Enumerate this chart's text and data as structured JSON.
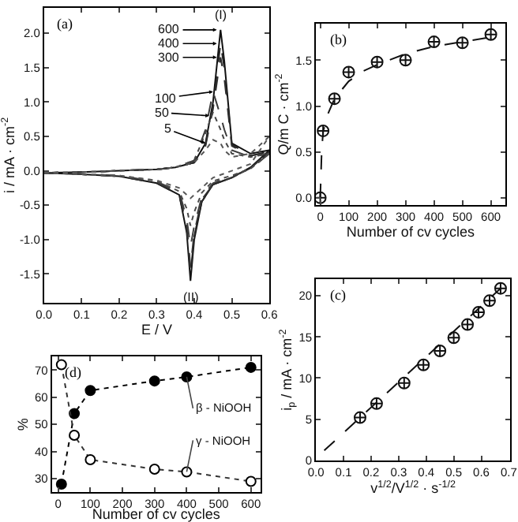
{
  "chart_data": [
    {
      "type": "line",
      "xlabel": "E / V",
      "ylabel": "i / mA · cm$^{-2}$",
      "xlim": [
        0,
        0.6
      ],
      "ylim": [
        -1.92,
        2.37
      ],
      "xticks": [
        {
          "value": 0,
          "label": "0.0"
        },
        0.1,
        0.2,
        0.3,
        0.4,
        0.5,
        0.6
      ],
      "yticks": [
        {
          "value": -1.5,
          "label": "-1.5"
        },
        {
          "value": -1,
          "label": "-1.0"
        },
        {
          "value": -0.5,
          "label": "-0.5"
        },
        {
          "value": 0,
          "label": "0.0"
        },
        0.5,
        {
          "value": 1,
          "label": "1.0"
        },
        1.5,
        {
          "value": 2,
          "label": "2.0"
        }
      ],
      "series": [
        {
          "color": "#111111",
          "line_style": "solid",
          "x": [
            0,
            0.1,
            0.2,
            0.3,
            0.35,
            0.4,
            0.43,
            0.45,
            0.47,
            0.48,
            0.5,
            0.55,
            0.6
          ],
          "values": [
            -0.03,
            -0.02,
            0,
            0.02,
            0.05,
            0.12,
            0.4,
            1.0,
            2.05,
            1.6,
            0.4,
            0.25,
            0.3
          ]
        },
        {
          "color": "#151515",
          "line_style": "solid",
          "x": [
            0,
            0.1,
            0.2,
            0.3,
            0.36,
            0.38,
            0.39,
            0.4,
            0.42,
            0.45,
            0.5,
            0.55,
            0.6
          ],
          "values": [
            -0.03,
            -0.05,
            -0.08,
            -0.18,
            -0.35,
            -0.9,
            -1.6,
            -1.0,
            -0.45,
            -0.2,
            -0.1,
            0.05,
            0.3
          ]
        },
        {
          "color": "#222222",
          "line_style": "dashed",
          "x": [
            0,
            0.1,
            0.2,
            0.3,
            0.35,
            0.4,
            0.43,
            0.45,
            0.47,
            0.48,
            0.5,
            0.55,
            0.6
          ],
          "values": [
            -0.03,
            -0.02,
            0,
            0.02,
            0.05,
            0.12,
            0.38,
            0.95,
            1.85,
            1.5,
            0.38,
            0.22,
            0.28
          ]
        },
        {
          "color": "#262626",
          "line_style": "dashed",
          "x": [
            0,
            0.1,
            0.2,
            0.3,
            0.36,
            0.38,
            0.39,
            0.4,
            0.42,
            0.45,
            0.5,
            0.55,
            0.6
          ],
          "values": [
            -0.03,
            -0.05,
            -0.08,
            -0.18,
            -0.35,
            -0.85,
            -1.5,
            -0.95,
            -0.45,
            -0.2,
            -0.1,
            0.04,
            0.28
          ]
        },
        {
          "color": "#2e2e2e",
          "line_style": "dashed",
          "x": [
            0,
            0.1,
            0.2,
            0.3,
            0.35,
            0.4,
            0.43,
            0.45,
            0.47,
            0.48,
            0.5,
            0.55,
            0.6
          ],
          "values": [
            -0.03,
            -0.02,
            0,
            0.02,
            0.05,
            0.12,
            0.36,
            0.9,
            1.65,
            1.35,
            0.36,
            0.22,
            0.27
          ]
        },
        {
          "color": "#323232",
          "line_style": "dashed",
          "x": [
            0,
            0.1,
            0.2,
            0.3,
            0.36,
            0.38,
            0.39,
            0.4,
            0.42,
            0.45,
            0.5,
            0.55,
            0.6
          ],
          "values": [
            -0.03,
            -0.05,
            -0.08,
            -0.17,
            -0.33,
            -0.8,
            -1.4,
            -0.9,
            -0.42,
            -0.2,
            -0.1,
            0.04,
            0.27
          ]
        },
        {
          "color": "#3a3a3a",
          "line_style": "dashed",
          "x": [
            0,
            0.1,
            0.2,
            0.3,
            0.35,
            0.4,
            0.43,
            0.45,
            0.47,
            0.48,
            0.5,
            0.55,
            0.6
          ],
          "values": [
            -0.03,
            -0.02,
            0,
            0.02,
            0.05,
            0.15,
            0.6,
            1.15,
            0.8,
            0.6,
            0.3,
            0.2,
            0.25
          ]
        },
        {
          "color": "#3e3e3e",
          "line_style": "dashed",
          "x": [
            0,
            0.1,
            0.2,
            0.3,
            0.36,
            0.38,
            0.39,
            0.4,
            0.42,
            0.45,
            0.5,
            0.55,
            0.6
          ],
          "values": [
            -0.03,
            -0.05,
            -0.07,
            -0.16,
            -0.3,
            -0.7,
            -1.1,
            -0.8,
            -0.38,
            -0.18,
            -0.08,
            0.03,
            0.25
          ]
        },
        {
          "color": "#464646",
          "line_style": "dotted",
          "x": [
            0,
            0.1,
            0.2,
            0.3,
            0.35,
            0.4,
            0.43,
            0.45,
            0.47,
            0.48,
            0.5,
            0.55,
            0.6
          ],
          "values": [
            -0.03,
            -0.02,
            0,
            0.02,
            0.05,
            0.15,
            0.55,
            0.85,
            0.6,
            0.45,
            0.25,
            0.2,
            0.25
          ]
        },
        {
          "color": "#4a4a4a",
          "line_style": "dotted",
          "x": [
            0,
            0.1,
            0.2,
            0.3,
            0.36,
            0.38,
            0.39,
            0.4,
            0.42,
            0.45,
            0.5,
            0.55,
            0.6
          ],
          "values": [
            -0.03,
            -0.05,
            -0.07,
            -0.15,
            -0.3,
            -0.55,
            -0.8,
            -0.6,
            -0.32,
            -0.15,
            -0.07,
            0.03,
            0.25
          ]
        },
        {
          "color": "#555555",
          "line_style": "dotted",
          "x": [
            0,
            0.1,
            0.2,
            0.3,
            0.35,
            0.4,
            0.43,
            0.45,
            0.47,
            0.48,
            0.5,
            0.55,
            0.6
          ],
          "values": [
            -0.03,
            -0.02,
            0,
            0.02,
            0.05,
            0.12,
            0.3,
            0.45,
            0.4,
            0.3,
            0.2,
            0.25,
            0.5
          ]
        },
        {
          "color": "#595959",
          "line_style": "dotted",
          "x": [
            0,
            0.1,
            0.2,
            0.3,
            0.36,
            0.38,
            0.39,
            0.4,
            0.42,
            0.45,
            0.5,
            0.55,
            0.6
          ],
          "values": [
            -0.03,
            -0.05,
            -0.07,
            -0.14,
            -0.25,
            -0.35,
            -0.4,
            -0.35,
            -0.25,
            -0.1,
            0,
            0.1,
            0.5
          ]
        }
      ],
      "annotations": [
        "(a)",
        {
          "text": "600",
          "x": 0.46,
          "y": 2.05
        },
        {
          "text": "400",
          "x": 0.46,
          "y": 1.85
        },
        {
          "text": "300",
          "x": 0.46,
          "y": 1.65
        },
        {
          "text": "100",
          "x": 0.45,
          "y": 1.15
        },
        {
          "text": "50",
          "x": 0.44,
          "y": 0.8
        },
        {
          "text": "5",
          "x": 0.43,
          "y": 0.4
        },
        {
          "text": "(I)",
          "x": 0.47,
          "y": 2.05
        },
        {
          "text": "(II)",
          "x": 0.39,
          "y": -1.6
        }
      ]
    },
    {
      "type": "scatter",
      "xlabel": "Number of cv cycles",
      "ylabel": "Q/m C · cm$^{-2}$",
      "xlim": [
        -15,
        650
      ],
      "ylim": [
        -0.08,
        1.9
      ],
      "xticks": [
        0,
        100,
        200,
        300,
        400,
        500,
        600
      ],
      "yticks": [
        {
          "value": 0,
          "label": "0.0"
        },
        0.5,
        {
          "value": 1,
          "label": "1.0"
        },
        1.5
      ],
      "series": [
        {
          "color": "#111111",
          "marker": "cross",
          "x": [
            0,
            10,
            50,
            100,
            200,
            300,
            400,
            500,
            600
          ],
          "values": [
            0,
            0.73,
            1.08,
            1.37,
            1.48,
            1.5,
            1.7,
            1.69,
            1.78
          ]
        },
        {
          "type": "line",
          "color": "#111111",
          "line_style": "dashed",
          "x": [
            0,
            5,
            10,
            25,
            50,
            100,
            150,
            200,
            300,
            400,
            500,
            600
          ],
          "values": [
            0,
            0.5,
            0.72,
            0.9,
            1.08,
            1.27,
            1.38,
            1.45,
            1.57,
            1.65,
            1.7,
            1.75
          ]
        }
      ],
      "annotations": [
        "(b)"
      ]
    },
    {
      "type": "scatter",
      "xlabel": "v$^{1/2}$/V$^{1/2}$ · s$^{-1/2}$",
      "ylabel": "i$_{p}$ / mA · cm$^{-2}$",
      "xlim": [
        0,
        0.705
      ],
      "ylim": [
        0,
        22
      ],
      "xticks": [
        {
          "value": 0,
          "label": "0.0"
        },
        0.1,
        0.2,
        0.3,
        0.4,
        0.5,
        0.6,
        0.7
      ],
      "yticks": [
        0,
        5,
        10,
        15,
        20
      ],
      "series": [
        {
          "color": "#111111",
          "marker": "cross",
          "x": [
            0.16,
            0.22,
            0.32,
            0.39,
            0.45,
            0.5,
            0.55,
            0.59,
            0.63,
            0.67
          ],
          "values": [
            5.2,
            6.9,
            9.4,
            11.6,
            13.3,
            14.9,
            16.5,
            18,
            19.4,
            20.9
          ]
        },
        {
          "type": "line",
          "color": "#111111",
          "line_style": "dashed",
          "x": [
            0.03,
            0.67
          ],
          "values": [
            1.2,
            20.9
          ]
        }
      ],
      "annotations": [
        "(c)"
      ]
    },
    {
      "type": "line",
      "xlabel": "Number of cv cycles",
      "ylabel": "%",
      "xlim": [
        -20,
        630
      ],
      "ylim": [
        25,
        75
      ],
      "xticks": [
        0,
        100,
        200,
        300,
        400,
        500,
        600
      ],
      "yticks": [
        30,
        40,
        50,
        60,
        70
      ],
      "marker": "circle",
      "line_style": "dotted",
      "x": [
        10,
        50,
        100,
        300,
        400,
        600
      ],
      "series": [
        {
          "name": "β - NiOOH",
          "color": "#000000",
          "values": [
            28,
            54,
            62.5,
            66,
            67.5,
            71
          ]
        },
        {
          "name": "γ - NiOOH",
          "color": "#ffffff",
          "values": [
            72,
            46,
            37,
            33.5,
            32.5,
            29
          ]
        }
      ],
      "annotations": [
        "(d)"
      ]
    }
  ]
}
